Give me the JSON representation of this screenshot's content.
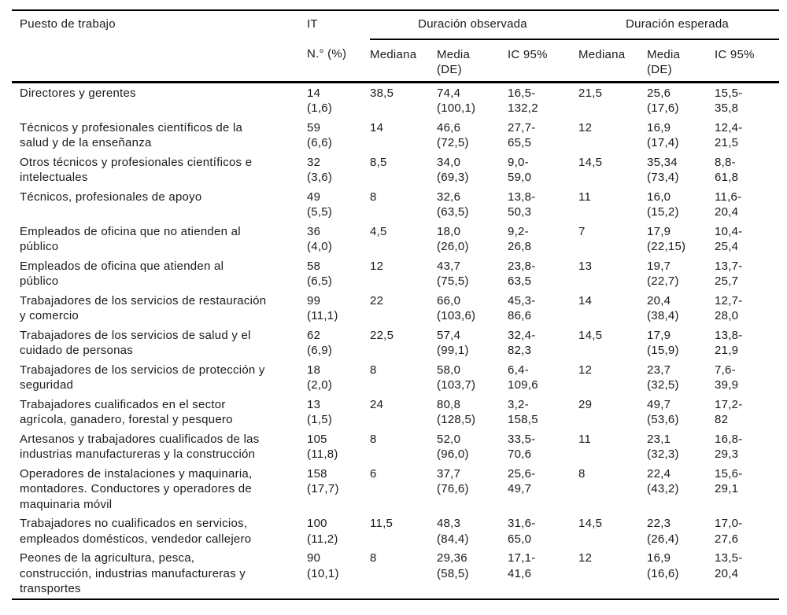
{
  "table": {
    "columns": {
      "puesto": "Puesto de trabajo",
      "it": "IT",
      "it_sub": "N.° (%)",
      "group_observed": "Duración observada",
      "group_expected": "Duración esperada",
      "sub_mediana": "Mediana",
      "sub_media_de": "Media\n(DE)",
      "sub_ic95": "IC 95%"
    },
    "rows": [
      {
        "cells": [
          "Directores y gerentes",
          "14\n(1,6)",
          "38,5",
          "74,4\n(100,1)",
          "16,5-\n132,2",
          "21,5",
          "25,6\n(17,6)",
          "15,5-\n35,8"
        ]
      },
      {
        "cells": [
          "Técnicos y profesionales científicos de la\nsalud y de la enseñanza",
          "59\n(6,6)",
          "14",
          "46,6\n(72,5)",
          "27,7-\n65,5",
          "12",
          "16,9\n(17,4)",
          "12,4-\n21,5"
        ]
      },
      {
        "cells": [
          "Otros técnicos y profesionales científicos e\nintelectuales",
          "32\n(3,6)",
          "8,5",
          "34,0\n(69,3)",
          "9,0-\n59,0",
          "14,5",
          "35,34\n(73,4)",
          "8,8-\n61,8"
        ]
      },
      {
        "cells": [
          "Técnicos, profesionales de apoyo",
          "49\n(5,5)",
          "8",
          "32,6\n(63,5)",
          "13,8-\n50,3",
          "11",
          "16,0\n(15,2)",
          "11,6-\n20,4"
        ]
      },
      {
        "cells": [
          "Empleados de oficina que no atienden al\npúblico",
          "36\n(4,0)",
          "4,5",
          "18,0\n(26,0)",
          "9,2-\n26,8",
          "7",
          "17,9\n(22,15)",
          "10,4-\n25,4"
        ]
      },
      {
        "cells": [
          "Empleados de oficina que atienden al\npúblico",
          "58\n(6,5)",
          "12",
          "43,7\n(75,5)",
          "23,8-\n63,5",
          "13",
          "19,7\n(22,7)",
          "13,7-\n25,7"
        ]
      },
      {
        "cells": [
          "Trabajadores de los servicios de restauración\ny comercio",
          "99\n(11,1)",
          "22",
          "66,0\n(103,6)",
          "45,3-\n86,6",
          "14",
          "20,4\n(38,4)",
          "12,7-\n28,0"
        ]
      },
      {
        "cells": [
          "Trabajadores de los servicios de salud y el\ncuidado de personas",
          "62\n(6,9)",
          "22,5",
          "57,4\n(99,1)",
          "32,4-\n82,3",
          "14,5",
          "17,9\n(15,9)",
          "13,8-\n21,9"
        ]
      },
      {
        "cells": [
          "Trabajadores de los servicios de protección y\nseguridad",
          "18\n(2,0)",
          "8",
          "58,0\n(103,7)",
          "6,4-\n109,6",
          "12",
          "23,7\n(32,5)",
          "7,6-\n39,9"
        ]
      },
      {
        "cells": [
          "Trabajadores cualificados en el sector\nagrícola, ganadero, forestal y pesquero",
          "13\n(1,5)",
          "24",
          "80,8\n(128,5)",
          "3,2-\n158,5",
          "29",
          "49,7\n(53,6)",
          "17,2-\n82"
        ]
      },
      {
        "cells": [
          "Artesanos y trabajadores cualificados de las\nindustrias manufactureras y la construcción",
          "105\n(11,8)",
          "8",
          "52,0\n(96,0)",
          "33,5-\n70,6",
          "11",
          "23,1\n(32,3)",
          "16,8-\n29,3"
        ]
      },
      {
        "cells": [
          "Operadores de instalaciones y maquinaria,\nmontadores. Conductores y operadores de\nmaquinaria móvil",
          "158\n(17,7)",
          "6",
          "37,7\n(76,6)",
          "25,6-\n49,7",
          "8",
          "22,4\n(43,2)",
          "15,6-\n29,1"
        ]
      },
      {
        "cells": [
          "Trabajadores no cualificados en servicios,\nempleados domésticos, vendedor callejero",
          "100\n(11,2)",
          "11,5",
          "48,3\n(84,4)",
          "31,6-\n65,0",
          "14,5",
          "22,3\n(26,4)",
          "17,0-\n27,6"
        ]
      },
      {
        "cells": [
          "Peones de la agricultura, pesca,\nconstrucción, industrias manufactureras y\ntransportes",
          "90\n(10,1)",
          "8",
          "29,36\n(58,5)",
          "17,1-\n41,6",
          "12",
          "16,9\n(16,6)",
          "13,5-\n20,4"
        ]
      }
    ]
  }
}
